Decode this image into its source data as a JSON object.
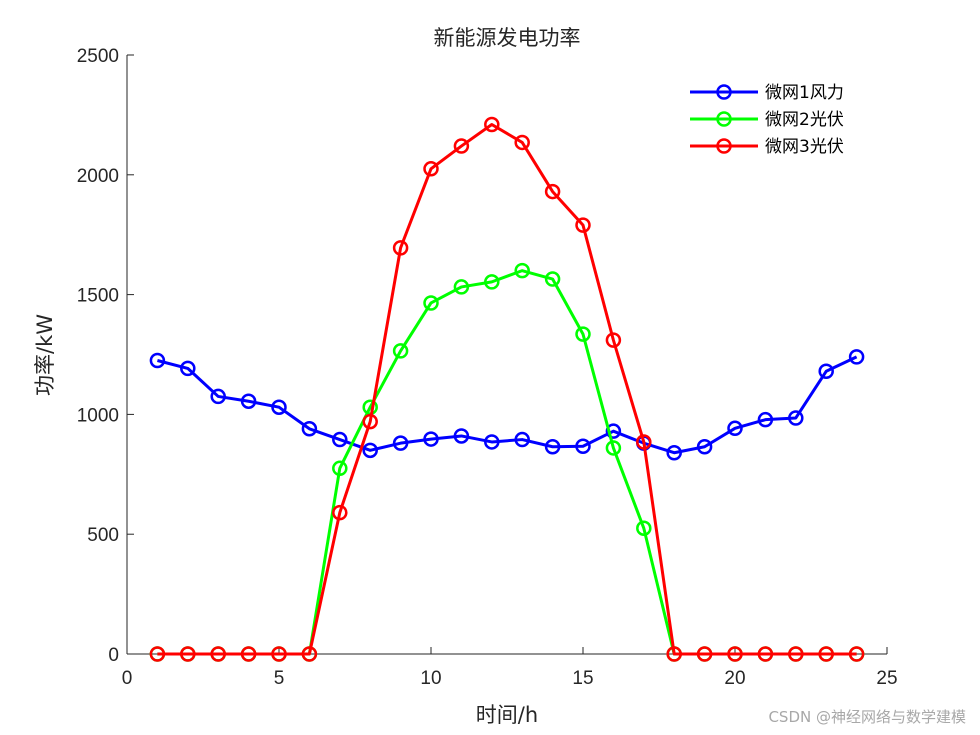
{
  "chart_data": {
    "type": "line",
    "title": "新能源发电功率",
    "xlabel": "时间/h",
    "ylabel": "功率/kW",
    "xlim": [
      0,
      25
    ],
    "ylim": [
      0,
      2500
    ],
    "xticks": [
      "0",
      "5",
      "10",
      "15",
      "20",
      "25"
    ],
    "yticks": [
      "0",
      "500",
      "1000",
      "1500",
      "2000",
      "2500"
    ],
    "legend_position": "top-right",
    "grid": false,
    "x": [
      1,
      2,
      3,
      4,
      5,
      6,
      7,
      8,
      9,
      10,
      11,
      12,
      13,
      14,
      15,
      16,
      17,
      18,
      19,
      20,
      21,
      22,
      23,
      24
    ],
    "series": [
      {
        "name": "微网1风力",
        "color": "#0000ff",
        "values": [
          1225,
          1192,
          1075,
          1055,
          1030,
          940,
          895,
          850,
          880,
          897,
          910,
          885,
          895,
          865,
          867,
          930,
          880,
          840,
          865,
          942,
          978,
          985,
          1180,
          1240
        ]
      },
      {
        "name": "微网2光伏",
        "color": "#00ff00",
        "values": [
          0,
          0,
          0,
          0,
          0,
          0,
          775,
          1030,
          1265,
          1465,
          1532,
          1553,
          1600,
          1565,
          1335,
          860,
          525,
          0,
          0,
          0,
          0,
          0,
          0,
          0
        ]
      },
      {
        "name": "微网3光伏",
        "color": "#ff0000",
        "values": [
          0,
          0,
          0,
          0,
          0,
          0,
          590,
          970,
          1695,
          2025,
          2120,
          2210,
          2135,
          1930,
          1790,
          1310,
          885,
          0,
          0,
          0,
          0,
          0,
          0,
          0
        ]
      }
    ]
  },
  "watermark": "CSDN @神经网络与数学建模"
}
